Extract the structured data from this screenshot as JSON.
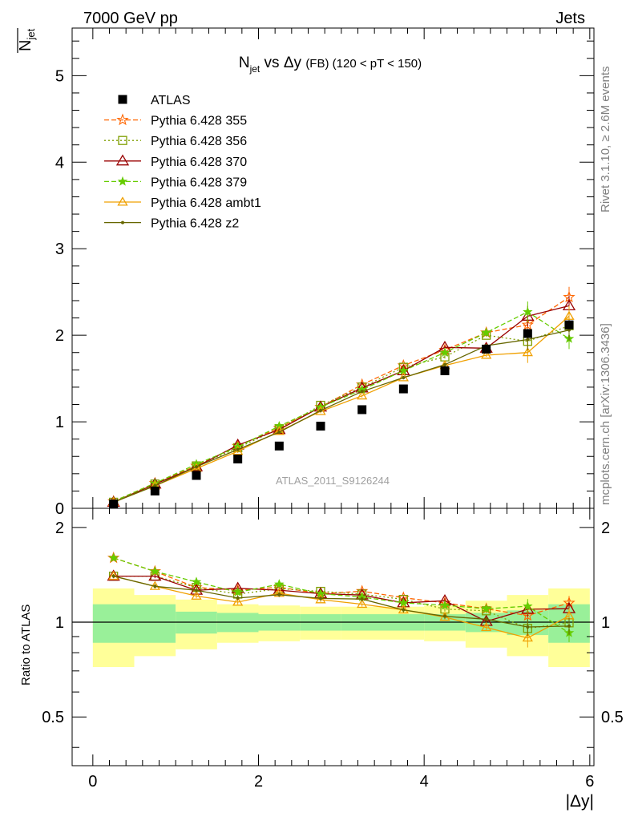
{
  "header": {
    "left": "7000 GeV pp",
    "right": "Jets"
  },
  "side_labels": {
    "rivet": "Rivet 3.1.10, ≥ 2.6M events",
    "mcplots": "mcplots.cern.ch [arXiv:1306.3436]"
  },
  "chart_data": {
    "type": "line",
    "title": "N_jet vs Δy (FB) (120 < pT < 150)",
    "title_parts": {
      "n": "N",
      "jet_sub": "jet",
      "vs_dy": " vs Δy ",
      "fb": "(FB)",
      "cut": " (120 < pT < 150)"
    },
    "watermark": "ATLAS_2011_S9126244",
    "ylabel": "N̄_jet",
    "ylabel_parts": {
      "n": "N",
      "sub": "jet"
    },
    "xlabel": "|Δy|",
    "ratio_ylabel": "Ratio to ATLAS",
    "xlim": [
      -0.25,
      6.05
    ],
    "ylim": [
      0,
      5.55
    ],
    "ratio_ylim": [
      0.35,
      2.3
    ],
    "x_ticks": [
      0,
      2,
      4,
      6
    ],
    "y_ticks": [
      0,
      1,
      2,
      3,
      4,
      5
    ],
    "ratio_ticks": [
      0.5,
      1,
      2
    ],
    "x": [
      0.25,
      0.75,
      1.25,
      1.75,
      2.25,
      2.75,
      3.25,
      3.75,
      4.25,
      4.75,
      5.25,
      5.75
    ],
    "bin_edges": [
      0,
      0.5,
      1,
      1.5,
      2,
      2.5,
      3,
      3.5,
      4,
      4.5,
      5,
      5.5,
      6
    ],
    "data": {
      "name": "ATLAS",
      "values": [
        0.05,
        0.2,
        0.38,
        0.57,
        0.72,
        0.95,
        1.14,
        1.38,
        1.59,
        1.84,
        2.02,
        2.12
      ],
      "color": "#000000"
    },
    "bands": {
      "inner_color": "#99f099",
      "outer_color": "#ffff99",
      "inner": [
        0.14,
        0.14,
        0.08,
        0.07,
        0.06,
        0.06,
        0.06,
        0.06,
        0.06,
        0.07,
        0.09,
        0.14
      ],
      "outer": [
        0.28,
        0.22,
        0.18,
        0.14,
        0.13,
        0.12,
        0.12,
        0.12,
        0.13,
        0.17,
        0.22,
        0.28
      ]
    },
    "series": [
      {
        "name": "Pythia 6.428 355",
        "color": "#ff6600",
        "dash": "6,3",
        "marker": "star-open",
        "values": [
          0.08,
          0.29,
          0.49,
          0.72,
          0.93,
          1.17,
          1.43,
          1.65,
          1.83,
          2.03,
          2.12,
          2.44
        ]
      },
      {
        "name": "Pythia 6.428 356",
        "color": "#7f9f00",
        "dash": "2,3",
        "marker": "square-open",
        "values": [
          0.07,
          0.28,
          0.49,
          0.7,
          0.92,
          1.19,
          1.4,
          1.63,
          1.75,
          2.0,
          1.93,
          2.11
        ]
      },
      {
        "name": "Pythia 6.428 370",
        "color": "#990000",
        "dash": "",
        "marker": "triangle-open",
        "values": [
          0.07,
          0.28,
          0.48,
          0.73,
          0.91,
          1.17,
          1.39,
          1.59,
          1.86,
          1.85,
          2.22,
          2.34
        ]
      },
      {
        "name": "Pythia 6.428 379",
        "color": "#66cc00",
        "dash": "6,3",
        "marker": "star-filled",
        "values": [
          0.08,
          0.29,
          0.51,
          0.71,
          0.95,
          1.17,
          1.37,
          1.59,
          1.8,
          2.03,
          2.27,
          1.96
        ]
      },
      {
        "name": "Pythia 6.428 ambt1",
        "color": "#f0a000",
        "dash": "",
        "marker": "triangle-open-small",
        "values": [
          0.07,
          0.26,
          0.46,
          0.66,
          0.89,
          1.12,
          1.3,
          1.51,
          1.65,
          1.77,
          1.8,
          2.22
        ]
      },
      {
        "name": "Pythia 6.428 z2",
        "color": "#666600",
        "dash": "",
        "marker": "dot",
        "values": [
          0.07,
          0.26,
          0.48,
          0.68,
          0.88,
          1.13,
          1.35,
          1.51,
          1.66,
          1.88,
          1.95,
          2.06
        ]
      }
    ]
  }
}
